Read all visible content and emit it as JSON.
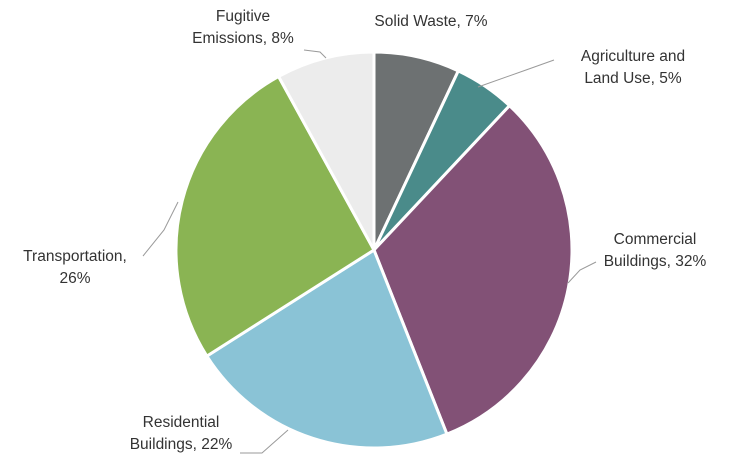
{
  "chart_data": {
    "type": "pie",
    "start_angle_deg": 0,
    "direction": "clockwise",
    "slices": [
      {
        "label_lines": [
          "Solid Waste, 7%"
        ],
        "value": 7,
        "color": "#6d7172"
      },
      {
        "label_lines": [
          "Agriculture and",
          "Land Use, 5%"
        ],
        "value": 5,
        "color": "#4a8b8a"
      },
      {
        "label_lines": [
          "Commercial",
          "Buildings, 32%"
        ],
        "value": 32,
        "color": "#825176"
      },
      {
        "label_lines": [
          "Residential",
          "Buildings, 22%"
        ],
        "value": 22,
        "color": "#8ac3d6"
      },
      {
        "label_lines": [
          "Transportation,",
          "26%"
        ],
        "value": 26,
        "color": "#8ab453"
      },
      {
        "label_lines": [
          "Fugitive",
          "Emissions, 8%"
        ],
        "value": 8,
        "color": "#ececec"
      }
    ]
  }
}
